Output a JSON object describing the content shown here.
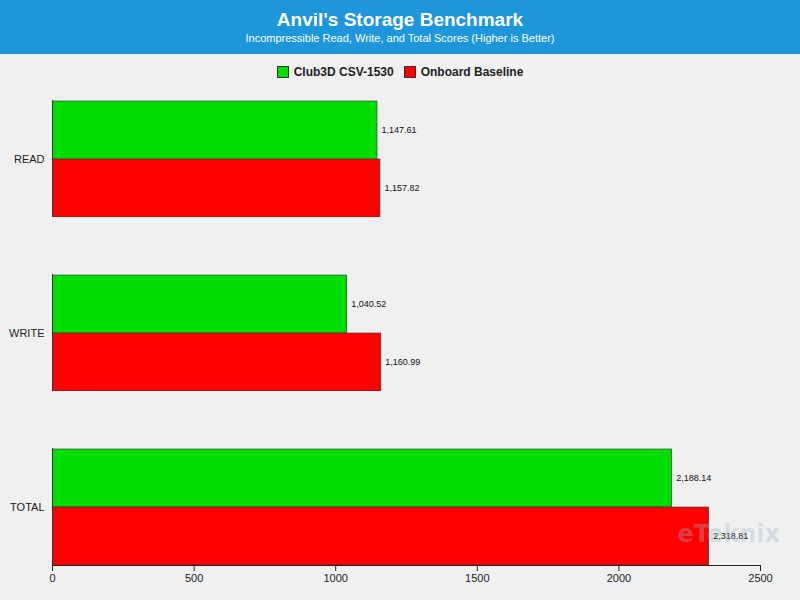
{
  "chart_data": {
    "type": "bar",
    "orientation": "horizontal",
    "title": "Anvil's Storage Benchmark",
    "subtitle": "Incompressible Read, Write, and Total Scores (Higher is Better)",
    "annotations": [
      "eTeknix"
    ],
    "categories": [
      "READ",
      "WRITE",
      "TOTAL"
    ],
    "series": [
      {
        "name": "Club3D CSV-1530",
        "color": "#00dd00",
        "values": [
          1147.61,
          1040.52,
          2188.14
        ],
        "value_labels": [
          "1,147.61",
          "1,040.52",
          "2,188.14"
        ]
      },
      {
        "name": "Onboard Baseline",
        "color": "#ff0000",
        "values": [
          1157.82,
          1160.99,
          2318.81
        ],
        "value_labels": [
          "1,157.82",
          "1,160.99",
          "2,318.81"
        ]
      }
    ],
    "xlim": [
      0,
      2500
    ],
    "xticks": [
      0,
      500,
      1000,
      1500,
      2000,
      2500
    ],
    "grid": false,
    "legend": "top",
    "data_labels": true
  }
}
